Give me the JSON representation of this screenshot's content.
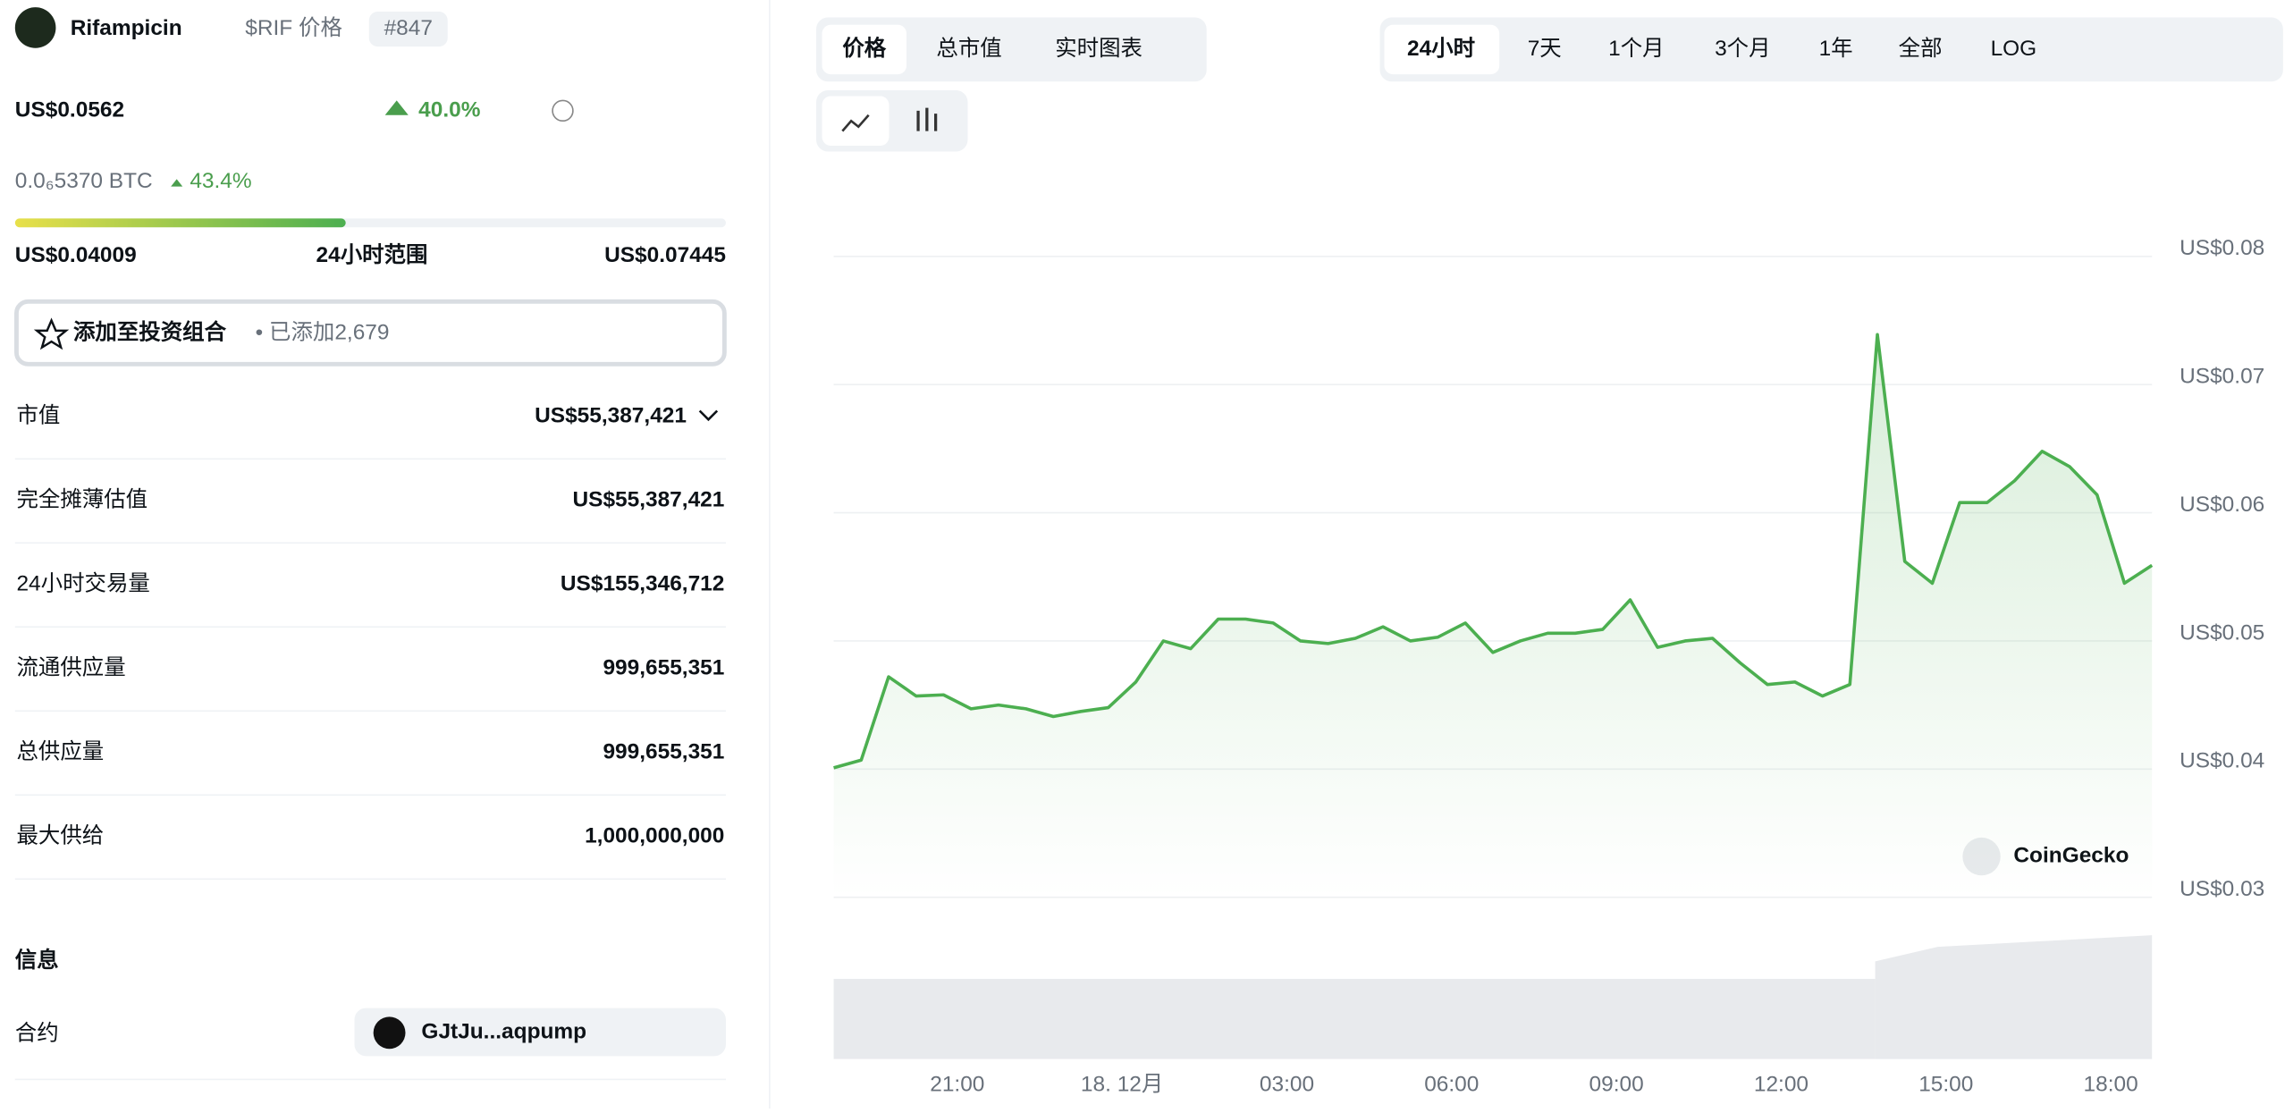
{
  "header": {
    "name": "Rifampicin",
    "symbol": "$RIF 价格",
    "rank": "#847",
    "price": "US$0.0562",
    "change": "40.0%",
    "btc_price": "0.0₆5370 BTC",
    "btc_change": "43.4%",
    "range_low": "US$0.04009",
    "range_label": "24小时范围",
    "range_high": "US$0.07445",
    "portfolio": "添加至投资组合",
    "added": "• 已添加2,679"
  },
  "stats": [
    {
      "label": "市值",
      "value": "US$55,387,421"
    },
    {
      "label": "完全摊薄估值",
      "value": "US$55,387,421"
    },
    {
      "label": "24小时交易量",
      "value": "US$155,346,712"
    },
    {
      "label": "流通供应量",
      "value": "999,655,351"
    },
    {
      "label": "总供应量",
      "value": "999,655,351"
    },
    {
      "label": "最大供给",
      "value": "1,000,000,000"
    }
  ],
  "info": {
    "title": "信息",
    "contract_label": "合约",
    "contract": "GJtJu...aqpump"
  },
  "tabs": [
    "价格",
    "总市值",
    "实时图表"
  ],
  "ranges": [
    "24小时",
    "7天",
    "1个月",
    "3个月",
    "1年",
    "全部",
    "LOG"
  ],
  "chart_data": {
    "type": "line",
    "color": "#4caf50",
    "watermark": "CoinGecko",
    "values": [
      0.0401,
      0.0407,
      0.0472,
      0.0457,
      0.0458,
      0.0447,
      0.045,
      0.0447,
      0.0441,
      0.0445,
      0.0448,
      0.0468,
      0.05,
      0.0494,
      0.0517,
      0.0517,
      0.0514,
      0.05,
      0.0498,
      0.0502,
      0.0511,
      0.05,
      0.0503,
      0.0514,
      0.0491,
      0.05,
      0.0506,
      0.0506,
      0.0509,
      0.0532,
      0.0495,
      0.05,
      0.0502,
      0.0483,
      0.0466,
      0.0468,
      0.0457,
      0.0466,
      0.0739,
      0.0562,
      0.0545,
      0.0608,
      0.0608,
      0.0625,
      0.0648,
      0.0636,
      0.0614,
      0.0545,
      0.0559
    ],
    "xlim": [
      0,
      48
    ],
    "xticks": [
      {
        "value": 4.5,
        "label": "21:00"
      },
      {
        "value": 10.5,
        "label": "18. 12月"
      },
      {
        "value": 16.5,
        "label": "03:00"
      },
      {
        "value": 22.5,
        "label": "06:00"
      },
      {
        "value": 28.5,
        "label": "09:00"
      },
      {
        "value": 34.5,
        "label": "12:00"
      },
      {
        "value": 40.5,
        "label": "15:00"
      },
      {
        "value": 46.5,
        "label": "18:00"
      }
    ],
    "ylim": [
      0.03,
      0.08
    ],
    "yticks": [
      {
        "value": 0.03,
        "label": "US$0.03"
      },
      {
        "value": 0.04,
        "label": "US$0.04"
      },
      {
        "value": 0.05,
        "label": "US$0.05"
      },
      {
        "value": 0.06,
        "label": "US$0.06"
      },
      {
        "value": 0.07,
        "label": "US$0.07"
      },
      {
        "value": 0.08,
        "label": "US$0.08"
      }
    ],
    "grid": true
  }
}
